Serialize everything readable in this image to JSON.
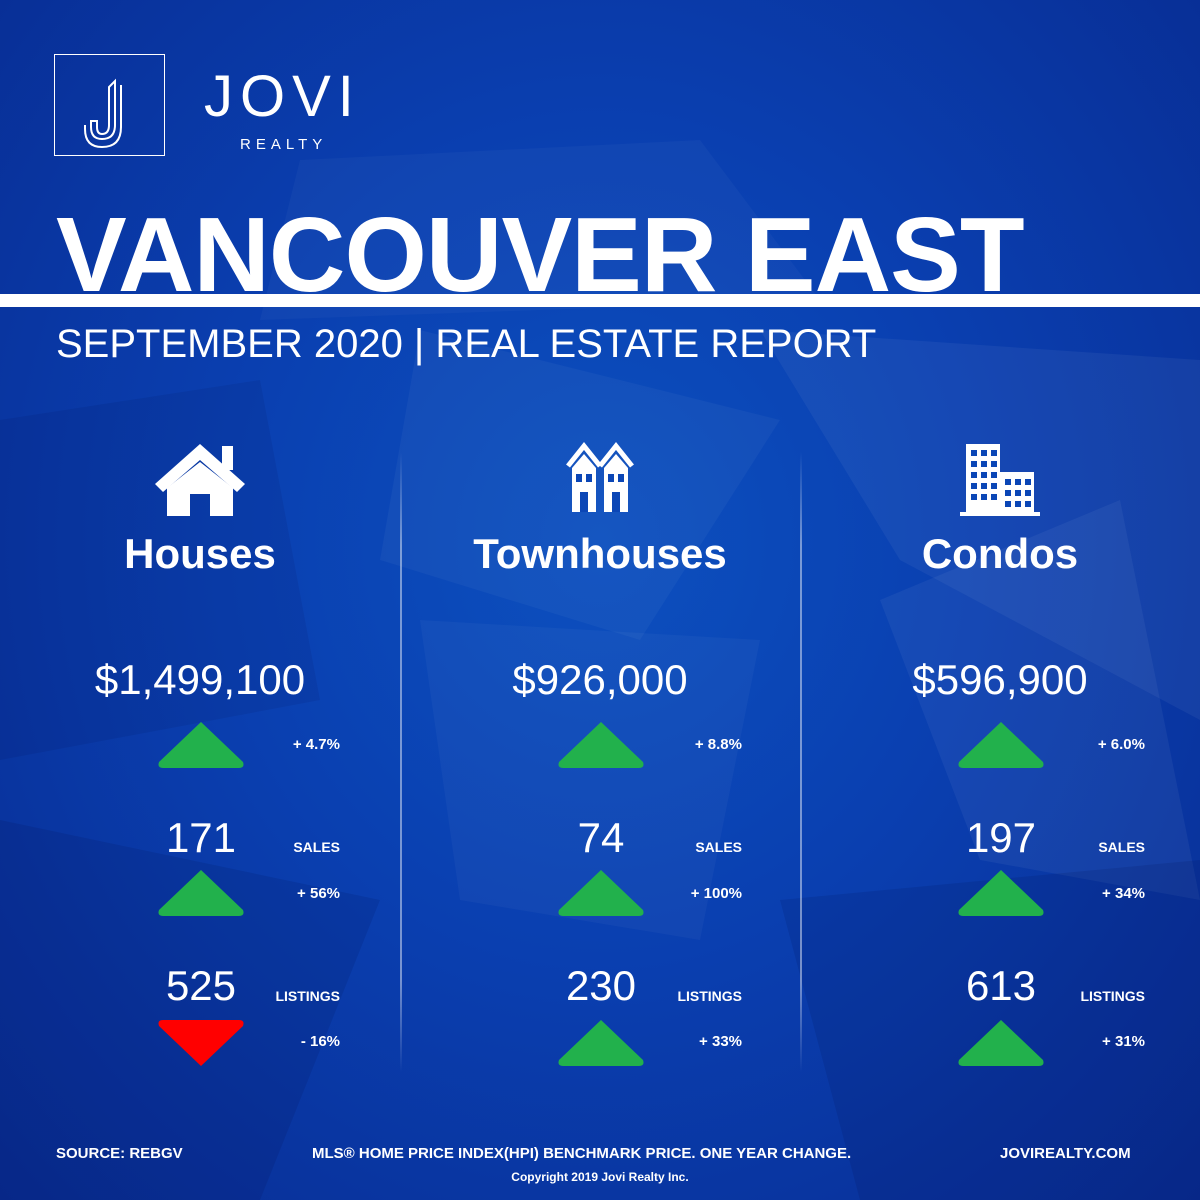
{
  "brand": {
    "name": "JOVI",
    "sub": "REALTY",
    "logo_icon": "j-monogram-icon"
  },
  "title": "VANCOUVER EAST",
  "subtitle": "SEPTEMBER 2020 | REAL ESTATE REPORT",
  "colors": {
    "background": "#0a3fb0",
    "up": "#22b14c",
    "down": "#ff0000",
    "text": "#ffffff"
  },
  "categories": [
    {
      "name": "Houses",
      "icon": "house-icon",
      "price": "$1,499,100",
      "price_change": "+ 4.7%",
      "price_trend": "up",
      "sales": "171",
      "sales_label": "SALES",
      "sales_change": "+ 56%",
      "sales_trend": "up",
      "listings": "525",
      "listings_label": "LISTINGS",
      "listings_change": "- 16%",
      "listings_trend": "down"
    },
    {
      "name": "Townhouses",
      "icon": "townhouse-icon",
      "price": "$926,000",
      "price_change": "+ 8.8%",
      "price_trend": "up",
      "sales": "74",
      "sales_label": "SALES",
      "sales_change": "+ 100%",
      "sales_trend": "up",
      "listings": "230",
      "listings_label": "LISTINGS",
      "listings_change": "+ 33%",
      "listings_trend": "up"
    },
    {
      "name": "Condos",
      "icon": "condo-building-icon",
      "price": "$596,900",
      "price_change": "+ 6.0%",
      "price_trend": "up",
      "sales": "197",
      "sales_label": "SALES",
      "sales_change": "+ 34%",
      "sales_trend": "up",
      "listings": "613",
      "listings_label": "LISTINGS",
      "listings_change": "+ 31%",
      "listings_trend": "up"
    }
  ],
  "footer": {
    "source": "SOURCE:  REBGV",
    "note": "MLS® HOME PRICE INDEX(HPI) BENCHMARK PRICE. ONE YEAR CHANGE.",
    "website": "JOVIREALTY.COM",
    "copyright": "Copyright 2019 Jovi Realty Inc."
  }
}
